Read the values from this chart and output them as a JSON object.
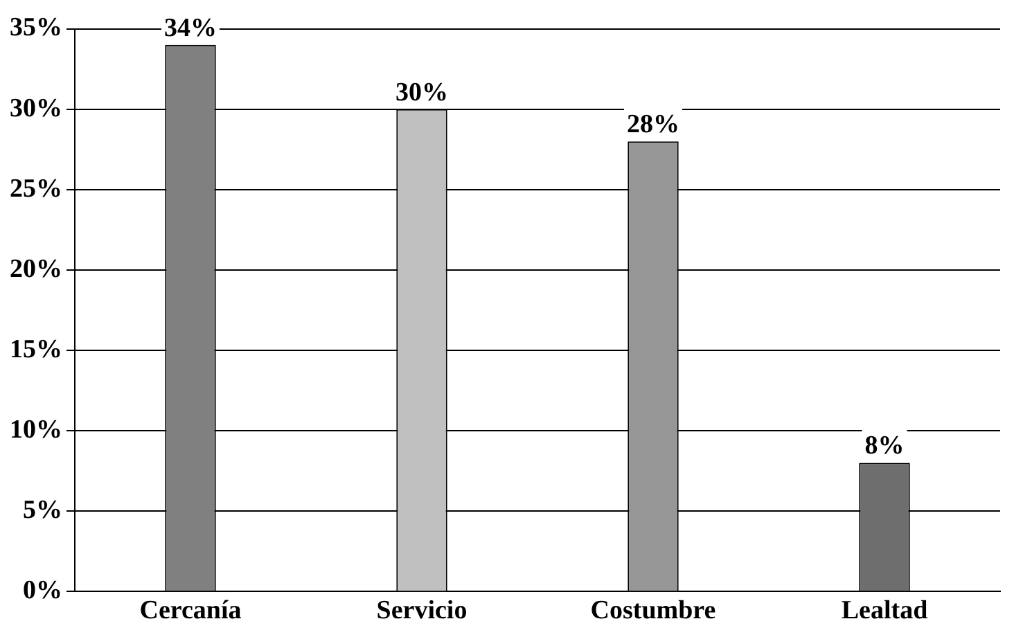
{
  "chart_data": {
    "type": "bar",
    "categories": [
      "Cercanía",
      "Servicio",
      "Costumbre",
      "Lealtad"
    ],
    "values": [
      34,
      30,
      28,
      8
    ],
    "colors": [
      "#808080",
      "#c0c0c0",
      "#969696",
      "#6e6e6e"
    ],
    "value_labels": [
      "34%",
      "30%",
      "28%",
      "8%"
    ],
    "ylim": [
      0,
      35
    ],
    "yticks": [
      {
        "value": 0,
        "label": "0%"
      },
      {
        "value": 5,
        "label": "5%"
      },
      {
        "value": 10,
        "label": "10%"
      },
      {
        "value": 15,
        "label": "15%"
      },
      {
        "value": 20,
        "label": "20%"
      },
      {
        "value": 25,
        "label": "25%"
      },
      {
        "value": 30,
        "label": "30%"
      },
      {
        "value": 35,
        "label": "35%"
      }
    ],
    "grid": "y",
    "legend": false
  }
}
